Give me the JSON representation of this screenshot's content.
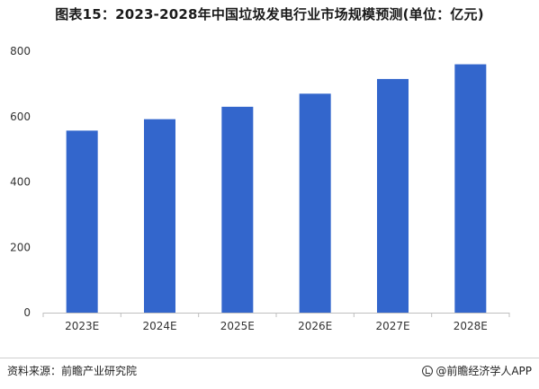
{
  "page": {
    "title": "图表15：2023-2028年中国垃圾发电行业市场规模预测(单位：亿元)",
    "source_label": "资料来源：前瞻产业研究院",
    "brand_label": "@前瞻经济学人APP",
    "bar_color": "#3366cc"
  },
  "chart_data": {
    "type": "bar",
    "title": "图表15：2023-2028年中国垃圾发电行业市场规模预测(单位：亿元)",
    "categories": [
      "2023E",
      "2024E",
      "2025E",
      "2026E",
      "2027E",
      "2028E"
    ],
    "series": [
      {
        "values": [
          557,
          592,
          630,
          670,
          715,
          760
        ]
      }
    ],
    "yticks": [
      0,
      200,
      400,
      600,
      800
    ],
    "ylim": [
      0,
      800
    ],
    "grid": false,
    "legend": "none"
  }
}
